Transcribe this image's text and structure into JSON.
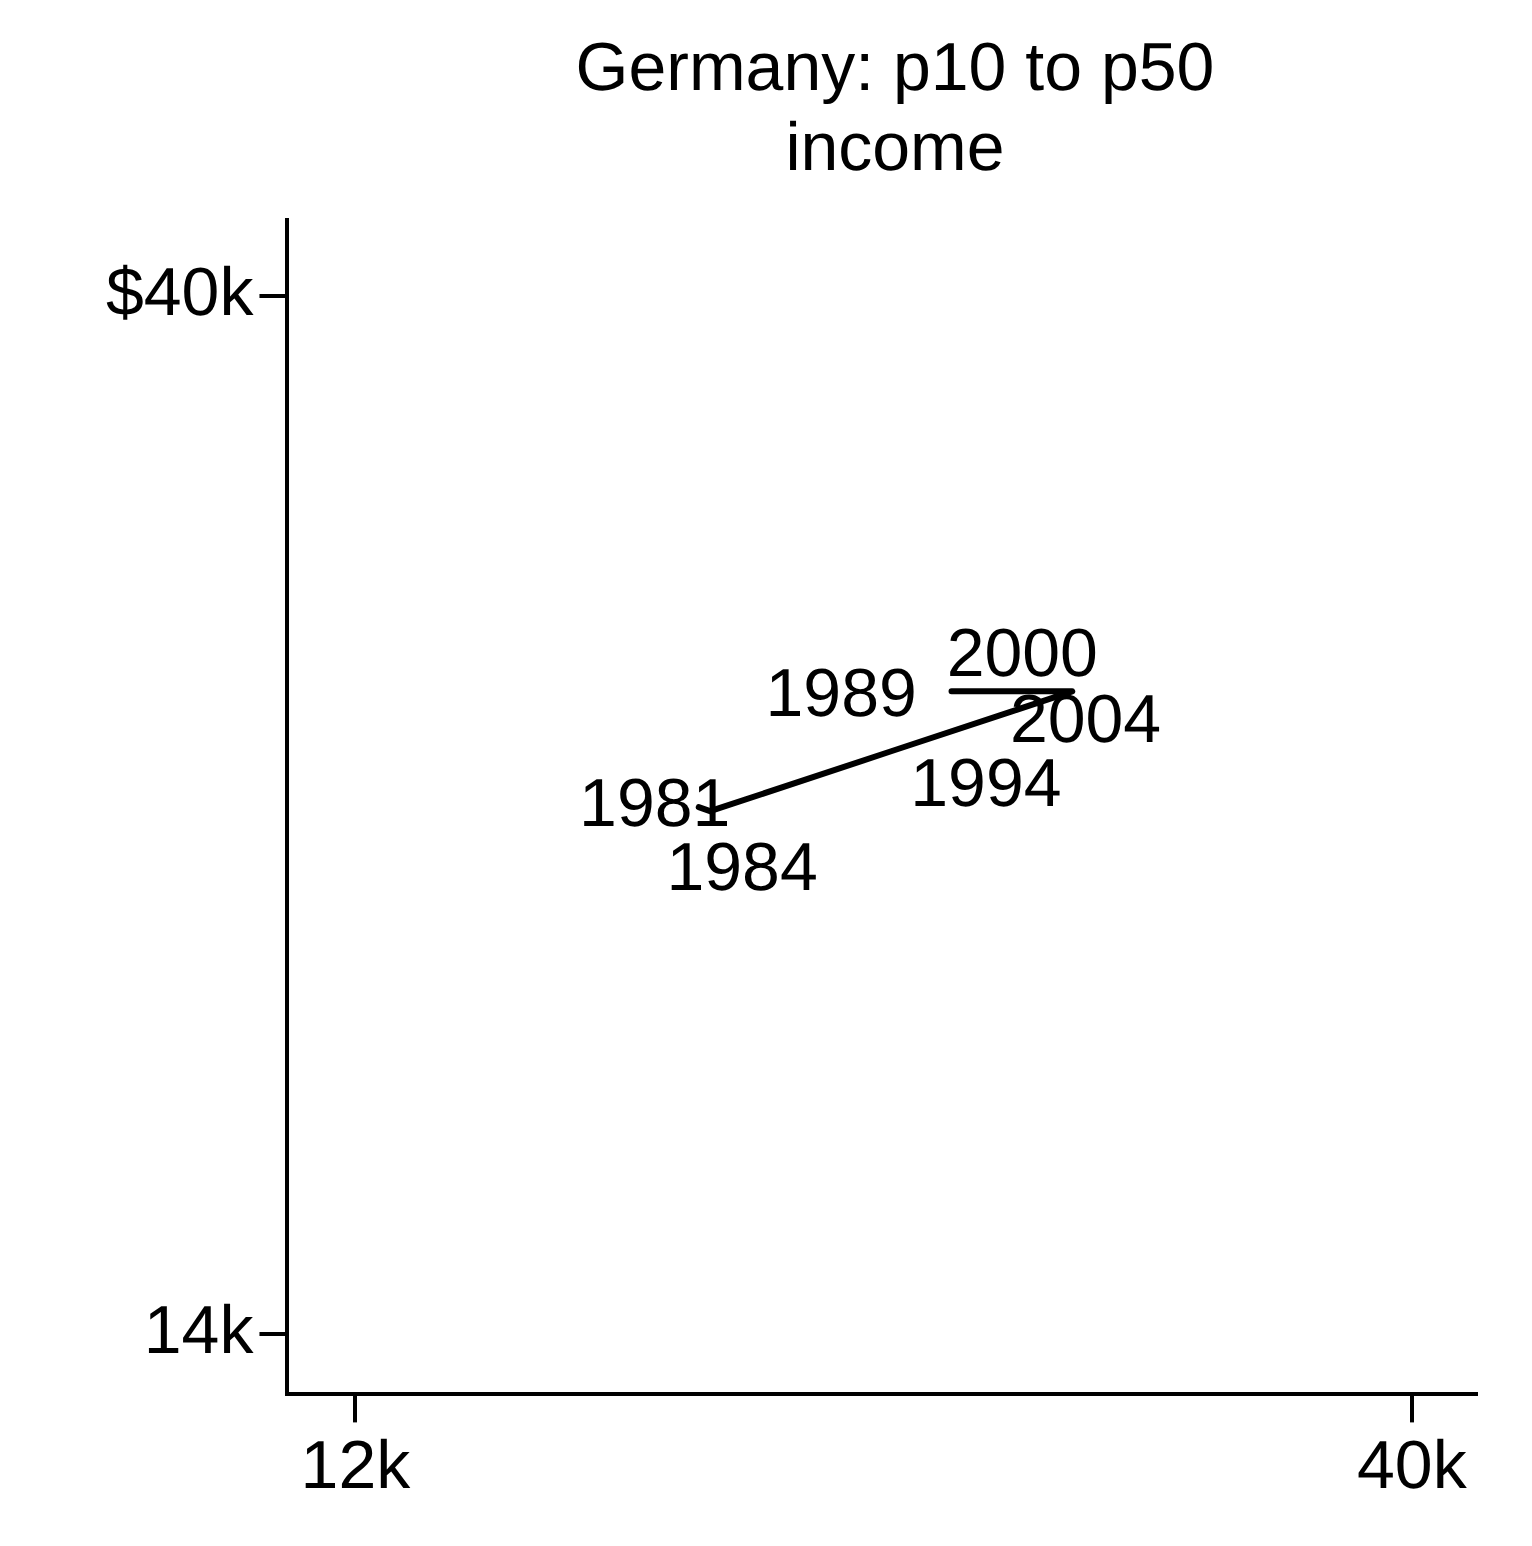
{
  "chart_data": {
    "type": "line",
    "title": "Germany: p10 to p50 income",
    "x": [
      21.1,
      21.4,
      26.2,
      29.4,
      31.0,
      27.8
    ],
    "values": [
      27.2,
      27.1,
      28.6,
      29.6,
      30.1,
      30.1
    ],
    "annotations": [
      {
        "text": "1981",
        "x": 21.1,
        "y": 27.2
      },
      {
        "text": "1984",
        "x": 21.4,
        "y": 27.1
      },
      {
        "text": "1989",
        "x": 26.2,
        "y": 28.6
      },
      {
        "text": "1994",
        "x": 29.4,
        "y": 29.6
      },
      {
        "text": "2000",
        "x": 31.0,
        "y": 30.1
      },
      {
        "text": "2004",
        "x": 27.8,
        "y": 30.1
      }
    ],
    "color": "#000000",
    "marker": "none",
    "xlim": [
      10.2,
      41.7
    ],
    "ylim": [
      12.5,
      41.9
    ],
    "xticks": [
      {
        "value": 12,
        "label": "12k"
      },
      {
        "value": 40,
        "label": "40k"
      }
    ],
    "yticks": [
      {
        "value": 14,
        "label": "14k"
      },
      {
        "value": 40,
        "label": "$40k"
      }
    ],
    "grid": false,
    "legend": false
  }
}
